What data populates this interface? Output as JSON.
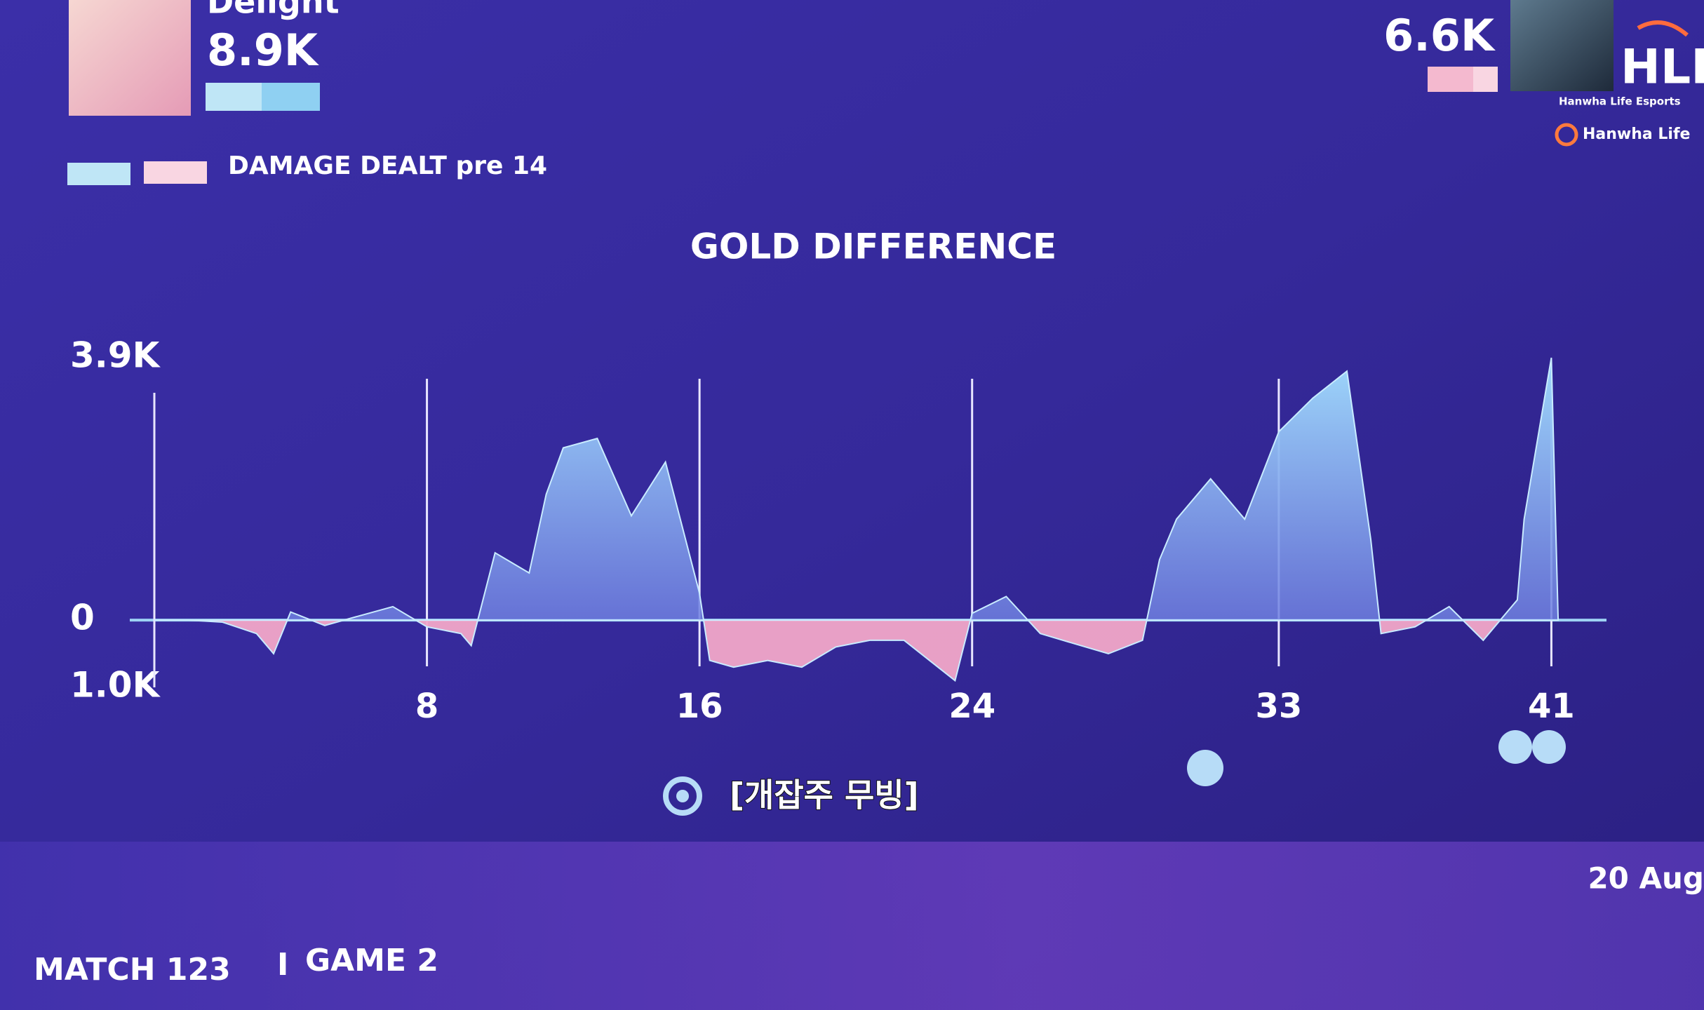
{
  "header": {
    "left_player": "Delight",
    "left_value": "8.9K",
    "right_value": "6.6K",
    "legend_label": "DAMAGE DEALT pre 14",
    "logo": "HLE",
    "logo_sub": "Hanwha Life Esports",
    "sponsor": "Hanwha Life"
  },
  "caption": "[개잡주 무빙]",
  "footer": {
    "match": "MATCH 123",
    "separator": "I",
    "game": "GAME 2",
    "date": "20 Aug"
  },
  "chart_data": {
    "type": "area",
    "title": "GOLD DIFFERENCE",
    "x": [
      0,
      1,
      2,
      3,
      3.5,
      4,
      5,
      6,
      7,
      8,
      9,
      9.3,
      10,
      11,
      11.5,
      12,
      13,
      14,
      15,
      16,
      16.3,
      17,
      18,
      19,
      20,
      21,
      22,
      23,
      23.5,
      24,
      25,
      26,
      27,
      28,
      29,
      29.5,
      30,
      31,
      32,
      33,
      34,
      35,
      35.7,
      36,
      37,
      38,
      39,
      40,
      40.2,
      41,
      41.2
    ],
    "values": [
      0,
      0,
      -30,
      -200,
      -500,
      120,
      -80,
      60,
      200,
      -100,
      -200,
      -380,
      1000,
      700,
      1870,
      2560,
      2700,
      1550,
      2350,
      400,
      -600,
      -700,
      -600,
      -700,
      -400,
      -300,
      -300,
      -700,
      -900,
      100,
      350,
      -200,
      -350,
      -500,
      -300,
      900,
      1500,
      2100,
      1500,
      2800,
      3300,
      3700,
      1200,
      -200,
      -100,
      200,
      -300,
      300,
      1500,
      3900,
      0
    ],
    "positive_color": "#9fd8fb",
    "negative_color": "#f2a6c8",
    "xlim": [
      0,
      42
    ],
    "xticks": [
      8,
      16,
      24,
      33,
      41
    ],
    "ylim": [
      -1000,
      3900
    ],
    "yticks": [
      {
        "value": 3900,
        "label": "3.9K"
      },
      0,
      {
        "value": -1000,
        "label": "1.0K"
      }
    ]
  }
}
